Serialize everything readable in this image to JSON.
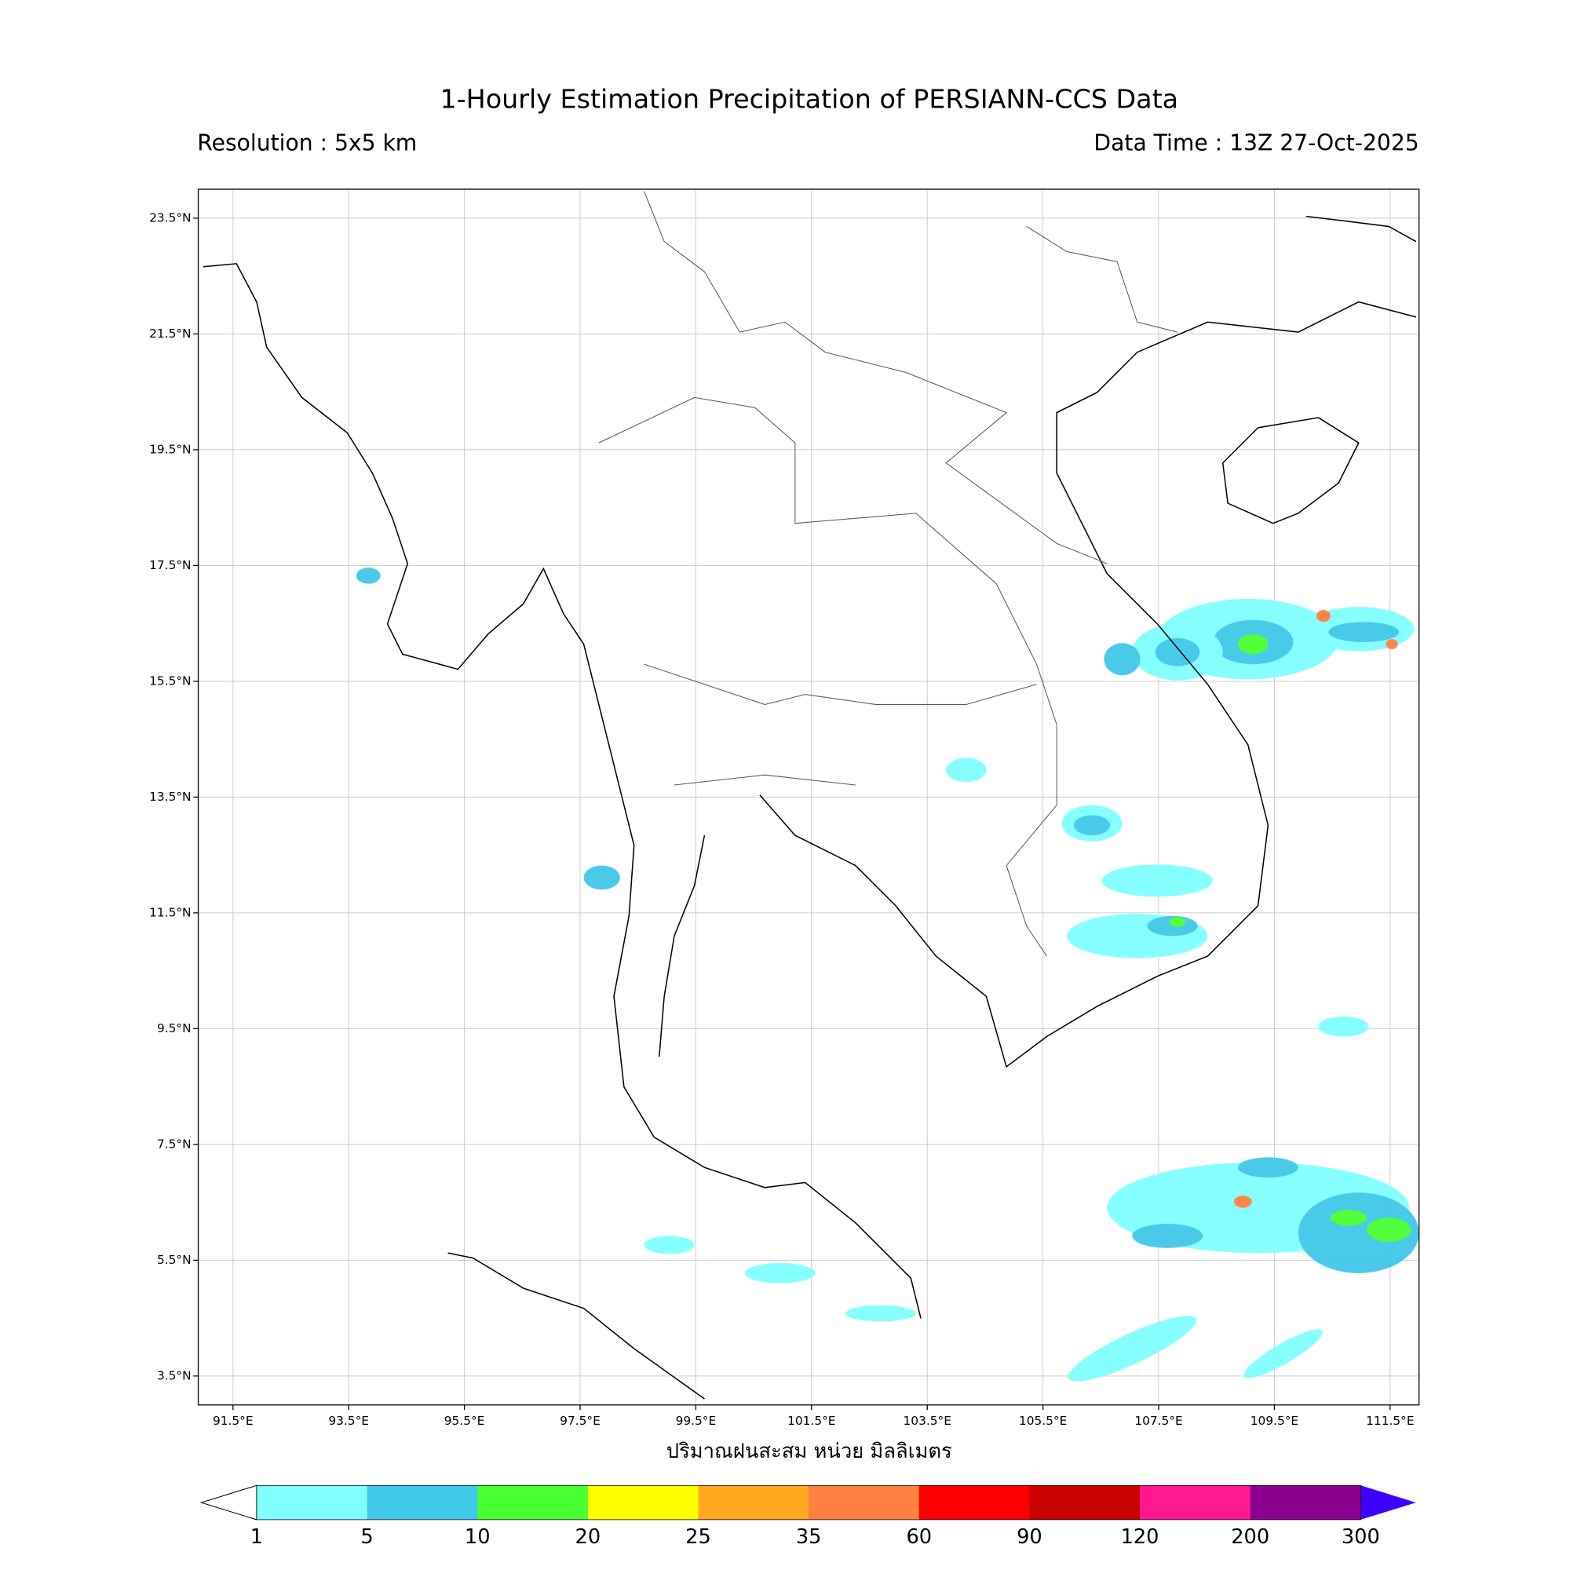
{
  "header": {
    "title": "1-Hourly Estimation Precipitation of PERSIANN-CCS Data",
    "resolution": "Resolution : 5x5 km",
    "data_time": "Data Time : 13Z 27-Oct-2025"
  },
  "map": {
    "lon_range": [
      90.9,
      112.0
    ],
    "lat_range": [
      3.0,
      24.0
    ],
    "lon_ticks": [
      {
        "value": 91.5,
        "label": "91.5°E"
      },
      {
        "value": 93.5,
        "label": "93.5°E"
      },
      {
        "value": 95.5,
        "label": "95.5°E"
      },
      {
        "value": 97.5,
        "label": "97.5°E"
      },
      {
        "value": 99.5,
        "label": "99.5°E"
      },
      {
        "value": 101.5,
        "label": "101.5°E"
      },
      {
        "value": 103.5,
        "label": "103.5°E"
      },
      {
        "value": 105.5,
        "label": "105.5°E"
      },
      {
        "value": 107.5,
        "label": "107.5°E"
      },
      {
        "value": 109.5,
        "label": "109.5°E"
      },
      {
        "value": 111.5,
        "label": "111.5°E"
      }
    ],
    "lat_ticks": [
      {
        "value": 23.5,
        "label": "23.5°N"
      },
      {
        "value": 21.5,
        "label": "21.5°N"
      },
      {
        "value": 19.5,
        "label": "19.5°N"
      },
      {
        "value": 17.5,
        "label": "17.5°N"
      },
      {
        "value": 15.5,
        "label": "15.5°N"
      },
      {
        "value": 13.5,
        "label": "13.5°N"
      },
      {
        "value": 11.5,
        "label": "11.5°N"
      },
      {
        "value": 9.5,
        "label": "9.5°N"
      },
      {
        "value": 7.5,
        "label": "7.5°N"
      },
      {
        "value": 5.5,
        "label": "5.5°N"
      },
      {
        "value": 3.5,
        "label": "3.5°N"
      }
    ],
    "x_label": "ปริมาณฝนสะสม หน่วย มิลลิเมตร"
  },
  "colorbar": {
    "levels": [
      1,
      5,
      10,
      20,
      25,
      35,
      60,
      90,
      120,
      200,
      300
    ],
    "colors": [
      "#80ffff",
      "#40c8e8",
      "#48ff30",
      "#ffff00",
      "#ffa820",
      "#ff8040",
      "#ff0000",
      "#c80000",
      "#ff1890",
      "#8c0090"
    ],
    "under_color": "#ffffff",
    "over_color": "#3c00ff"
  }
}
